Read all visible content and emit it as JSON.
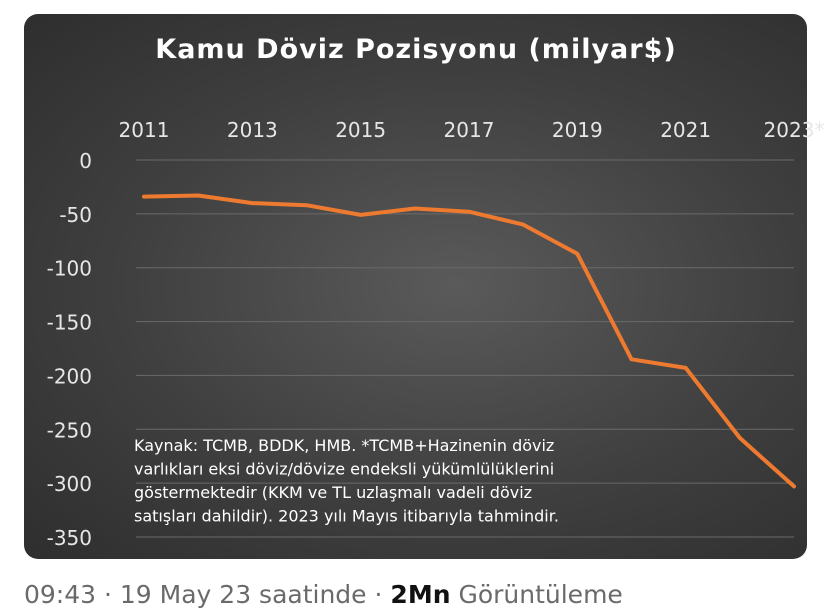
{
  "chart_data": {
    "type": "line",
    "title": "Kamu Döviz Pozisyonu (milyar$)",
    "x_tick_labels": [
      "2011",
      "2013",
      "2015",
      "2017",
      "2019",
      "2021",
      "2023*"
    ],
    "y_tick_labels": [
      "0",
      "-50",
      "-100",
      "-150",
      "-200",
      "-250",
      "-300",
      "-350"
    ],
    "ylim": [
      -350,
      0
    ],
    "xlim": [
      2011,
      2023
    ],
    "grid": true,
    "series": [
      {
        "x": [
          2011,
          2012,
          2013,
          2014,
          2015,
          2016,
          2017,
          2018,
          2019,
          2020,
          2021,
          2022,
          2023
        ],
        "values": [
          -34,
          -33,
          -40,
          -42,
          -51,
          -45,
          -48,
          -60,
          -87,
          -185,
          -193,
          -258,
          -303
        ],
        "color": "#ee7a30"
      }
    ],
    "note": [
      "Kaynak:  TCMB, BDDK, HMB. *TCMB+Hazinenin döviz",
      "varlıkları eksi döviz/dövize endeksli yükümlülüklerini",
      "göstermektedir (KKM ve TL uzlaşmalı vadeli döviz",
      "satışları dahildir). 2023 yılı Mayıs itibarıyla tahmindir."
    ]
  },
  "footer": {
    "time": "09:43",
    "separator": "·",
    "date_text": "19 May 23 saatinde",
    "views_count": "2Mn",
    "views_label": "Görüntüleme"
  },
  "colors": {
    "line": "#ee7a30",
    "axis_text": "#e6e6e6",
    "grid": "#6a6a6a"
  }
}
